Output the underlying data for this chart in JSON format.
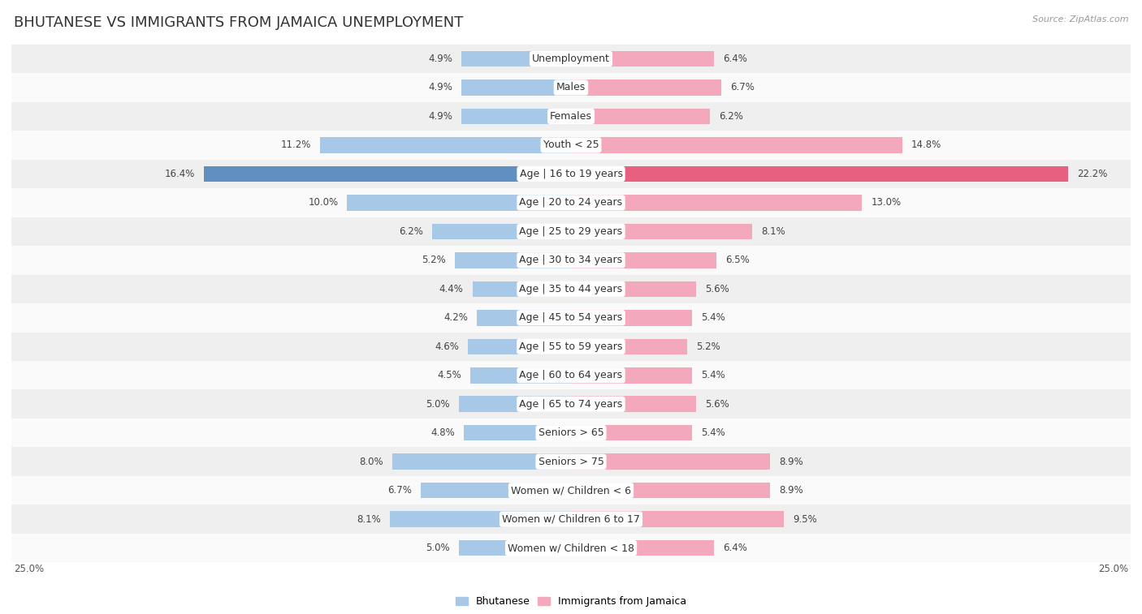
{
  "title": "BHUTANESE VS IMMIGRANTS FROM JAMAICA UNEMPLOYMENT",
  "source": "Source: ZipAtlas.com",
  "categories": [
    "Unemployment",
    "Males",
    "Females",
    "Youth < 25",
    "Age | 16 to 19 years",
    "Age | 20 to 24 years",
    "Age | 25 to 29 years",
    "Age | 30 to 34 years",
    "Age | 35 to 44 years",
    "Age | 45 to 54 years",
    "Age | 55 to 59 years",
    "Age | 60 to 64 years",
    "Age | 65 to 74 years",
    "Seniors > 65",
    "Seniors > 75",
    "Women w/ Children < 6",
    "Women w/ Children 6 to 17",
    "Women w/ Children < 18"
  ],
  "bhutanese": [
    4.9,
    4.9,
    4.9,
    11.2,
    16.4,
    10.0,
    6.2,
    5.2,
    4.4,
    4.2,
    4.6,
    4.5,
    5.0,
    4.8,
    8.0,
    6.7,
    8.1,
    5.0
  ],
  "jamaica": [
    6.4,
    6.7,
    6.2,
    14.8,
    22.2,
    13.0,
    8.1,
    6.5,
    5.6,
    5.4,
    5.2,
    5.4,
    5.6,
    5.4,
    8.9,
    8.9,
    9.5,
    6.4
  ],
  "bhutanese_color": "#a8c8e8",
  "jamaica_color": "#f4a8bc",
  "bhutanese_highlight_color": "#6090c0",
  "jamaica_highlight_color": "#e86080",
  "row_bg_odd": "#efefef",
  "row_bg_even": "#fafafa",
  "max_val": 25.0,
  "legend_bhutanese": "Bhutanese",
  "legend_jamaica": "Immigrants from Jamaica",
  "title_fontsize": 13,
  "label_fontsize": 9,
  "value_fontsize": 8.5,
  "bottom_label": "25.0%"
}
